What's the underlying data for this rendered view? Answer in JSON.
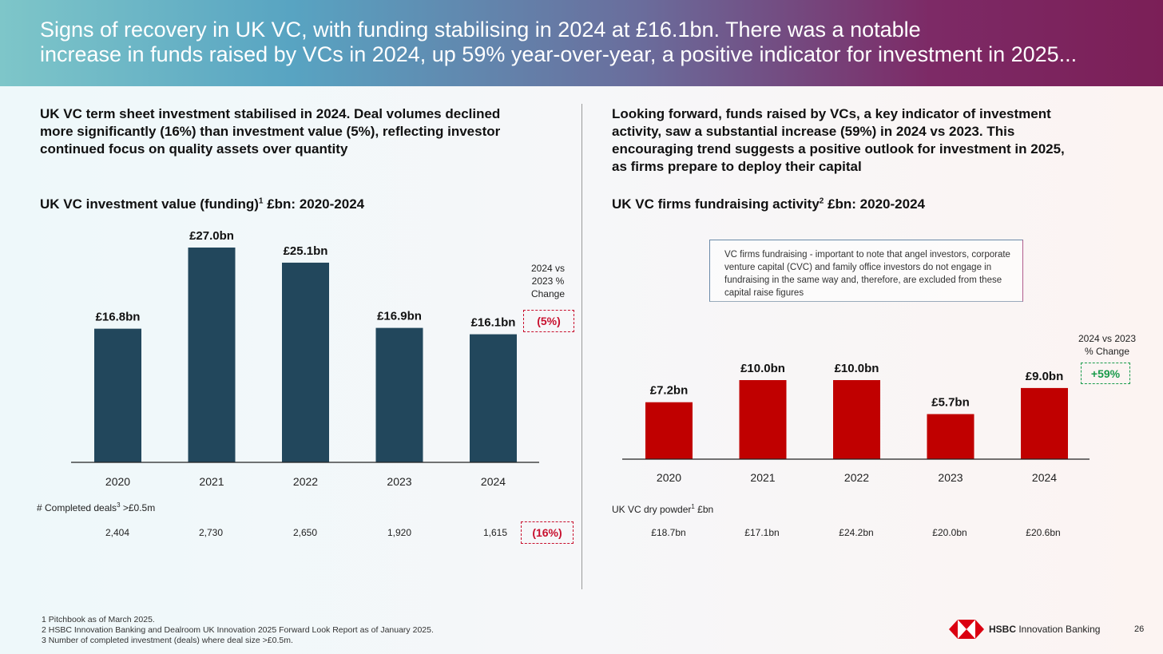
{
  "banner": {
    "line1": "Signs of recovery in UK VC, with funding stabilising in 2024 at £16.1bn. There was a notable",
    "line2": "increase in funds raised by VCs in 2024, up 59% year-over-year, a positive indicator for investment in 2025..."
  },
  "left": {
    "headline": [
      "UK VC term sheet investment stabilised in 2024. Deal volumes declined",
      "more significantly (16%) than investment value (5%), reflecting investor",
      "continued focus on quality assets over quantity"
    ],
    "chart_title": "UK VC investment value (funding)",
    "chart_title_sup": "1",
    "chart_title_suffix": " £bn: 2020-2024",
    "change_label": [
      "2024 vs",
      "2023 %",
      "Change"
    ],
    "change_value": "(5%)",
    "deals_label": "# Completed deals",
    "deals_label_sup": "3",
    "deals_label_suffix": " >£0.5m",
    "deals": [
      "2,404",
      "2,730",
      "2,650",
      "1,920",
      "1,615"
    ],
    "deals_change": "(16%)"
  },
  "right": {
    "headline": [
      "Looking forward, funds raised by VCs, a key indicator of investment",
      "activity, saw a substantial increase (59%) in 2024 vs 2023. This",
      "encouraging trend suggests a positive outlook for investment in 2025,",
      "as firms prepare to deploy their capital"
    ],
    "chart_title": "UK VC firms fundraising activity",
    "chart_title_sup": "2",
    "chart_title_suffix": " £bn: 2020-2024",
    "note": "VC firms fundraising - important to note that angel investors, corporate venture capital (CVC) and family office investors do not engage in fundraising in the same way and, therefore, are excluded from these capital raise figures",
    "change_label": [
      "2024 vs 2023",
      "% Change"
    ],
    "change_value": "+59%",
    "powder_label": "UK VC dry powder",
    "powder_label_sup": "1",
    "powder_label_suffix": " £bn",
    "powder": [
      "£18.7bn",
      "£17.1bn",
      "£24.2bn",
      "£20.0bn",
      "£20.6bn"
    ]
  },
  "chart_data": [
    {
      "type": "bar",
      "title": "UK VC investment value (funding)1 £bn: 2020-2024",
      "categories": [
        "2020",
        "2021",
        "2022",
        "2023",
        "2024"
      ],
      "values": [
        16.8,
        27.0,
        25.1,
        16.9,
        16.1
      ],
      "labels": [
        "£16.8bn",
        "£27.0bn",
        "£25.1bn",
        "£16.9bn",
        "£16.1bn"
      ],
      "color": "#22475c",
      "ylim": [
        0,
        27.0
      ]
    },
    {
      "type": "bar",
      "title": "UK VC firms fundraising activity2 £bn: 2020-2024",
      "categories": [
        "2020",
        "2021",
        "2022",
        "2023",
        "2024"
      ],
      "values": [
        7.2,
        10.0,
        10.0,
        5.7,
        9.0
      ],
      "labels": [
        "£7.2bn",
        "£10.0bn",
        "£10.0bn",
        "£5.7bn",
        "£9.0bn"
      ],
      "color": "#c00000",
      "ylim": [
        0,
        10.0
      ]
    }
  ],
  "footnotes": [
    "1 Pitchbook as of March 2025.",
    "2 HSBC Innovation Banking and Dealroom UK Innovation 2025 Forward Look Report as of January 2025.",
    "3 Number of completed investment (deals) where deal size >£0.5m."
  ],
  "logo": {
    "brand": "HSBC",
    "suffix": " Innovation Banking",
    "colors": {
      "red": "#db0011"
    }
  },
  "page_number": "26"
}
